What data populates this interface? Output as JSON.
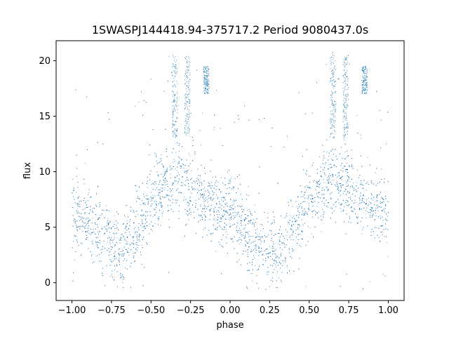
{
  "chart_data": {
    "type": "scatter",
    "title": "1SWASPJ144418.94-375717.2 Period 9080437.0s",
    "xlabel": "phase",
    "ylabel": "flux",
    "xlim": [
      -1.1,
      1.1
    ],
    "ylim": [
      -1.6,
      21.8
    ],
    "xticks": [
      -1.0,
      -0.75,
      -0.5,
      -0.25,
      0.0,
      0.25,
      0.5,
      0.75,
      1.0
    ],
    "xtick_labels": [
      "−1.00",
      "−0.75",
      "−0.50",
      "−0.25",
      "0.00",
      "0.25",
      "0.50",
      "0.75",
      "1.00"
    ],
    "yticks": [
      0,
      5,
      10,
      15,
      20
    ],
    "ytick_labels": [
      "0",
      "5",
      "10",
      "15",
      "20"
    ],
    "grid": false,
    "color": "#1f77b4",
    "phase_range": [
      -1.0,
      1.0
    ],
    "trend": {
      "phase": [
        -1.0,
        -0.9,
        -0.8,
        -0.75,
        -0.7,
        -0.65,
        -0.6,
        -0.55,
        -0.5,
        -0.45,
        -0.4,
        -0.35,
        -0.3,
        -0.25,
        -0.2,
        -0.15,
        -0.1,
        -0.05,
        0.0,
        0.05,
        0.1,
        0.15,
        0.2,
        0.25,
        0.3,
        0.35,
        0.4,
        0.45,
        0.5,
        0.55,
        0.6,
        0.65,
        0.7,
        0.75,
        0.8,
        0.85,
        0.9,
        0.95,
        1.0
      ],
      "flux": [
        6.5,
        5.5,
        4.0,
        3.5,
        3.0,
        3.5,
        4.5,
        6.0,
        7.5,
        8.5,
        9.0,
        9.0,
        9.0,
        8.5,
        8.0,
        7.5,
        7.0,
        6.5,
        6.5,
        5.5,
        4.5,
        4.0,
        3.5,
        3.2,
        3.0,
        3.5,
        4.5,
        6.0,
        7.5,
        8.5,
        9.0,
        9.0,
        9.0,
        8.5,
        8.0,
        7.5,
        7.0,
        6.5,
        6.5
      ],
      "spread": 2.2
    },
    "bright_clusters": [
      {
        "phase": -0.35,
        "flux": [
          13,
          20.5
        ]
      },
      {
        "phase": -0.27,
        "flux": [
          13,
          20.5
        ]
      },
      {
        "phase": -0.15,
        "flux": [
          17,
          19.5
        ]
      },
      {
        "phase": 0.65,
        "flux": [
          13,
          20.5
        ]
      },
      {
        "phase": 0.73,
        "flux": [
          13,
          20.5
        ]
      },
      {
        "phase": 0.85,
        "flux": [
          17,
          19.5
        ]
      }
    ],
    "outlier_floor": -0.6,
    "outlier_ceiling": 20.8
  }
}
